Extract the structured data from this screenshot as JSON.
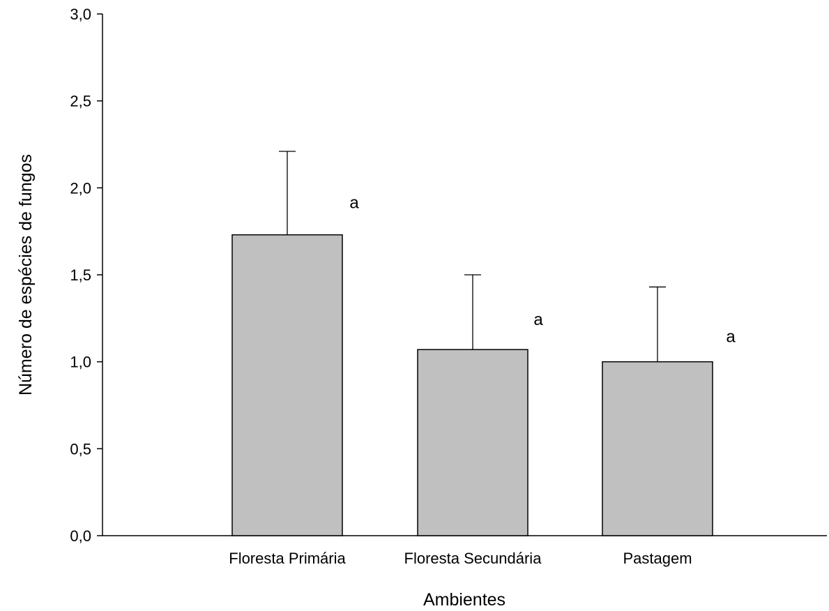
{
  "chart_data": {
    "type": "bar",
    "categories": [
      "Floresta Primária",
      "Floresta Secundária",
      "Pastagem"
    ],
    "values": [
      1.73,
      1.07,
      1.0
    ],
    "error_upper": [
      2.21,
      1.5,
      1.43
    ],
    "significance_labels": [
      "a",
      "a",
      "a"
    ],
    "xlabel": "Ambientes",
    "ylabel": "Número de espécies de fungos",
    "ylim": [
      0,
      3.0
    ],
    "yticks": [
      "0,0",
      "0,5",
      "1,0",
      "1,5",
      "2,0",
      "2,5",
      "3,0"
    ],
    "grid": false,
    "bar_color": "#c0c0c0",
    "edge_color": "#000000"
  }
}
